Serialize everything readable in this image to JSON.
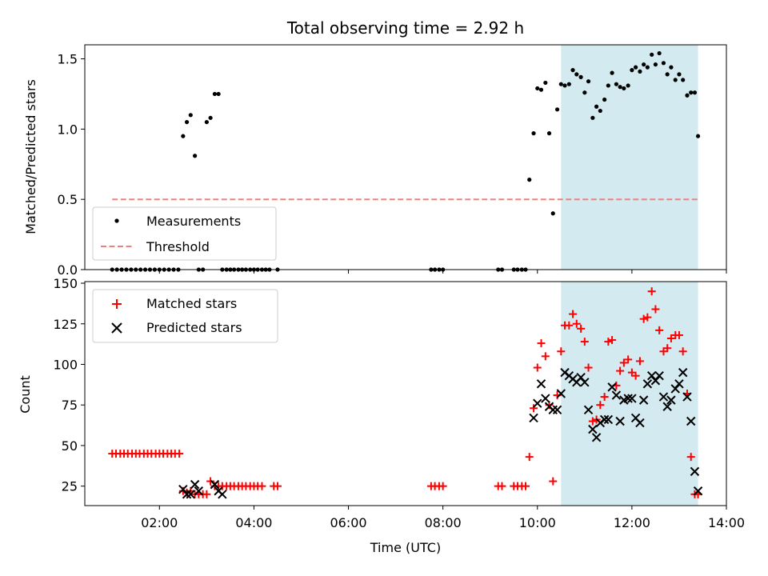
{
  "chart_data": [
    {
      "type": "scatter",
      "title": "Total observing time = 2.92 h",
      "ylabel": "Matched/Predicted stars",
      "xlabel": "",
      "xlim": [
        0.42,
        14.0
      ],
      "ylim": [
        0,
        1.6
      ],
      "yticks": [
        0.0,
        0.5,
        1.0,
        1.5
      ],
      "ytick_labels": [
        "0.0",
        "0.5",
        "1.0",
        "1.5"
      ],
      "observing_window": [
        10.5,
        13.4
      ],
      "window_color": "#d3eaf1",
      "threshold": {
        "name": "Threshold",
        "value": 0.5,
        "x_range": [
          1.0,
          13.4
        ],
        "color": "#f08080"
      },
      "legend": {
        "position": "lower-left",
        "entries": [
          "Measurements",
          "Threshold"
        ]
      },
      "series": [
        {
          "name": "Measurements",
          "color": "#000000",
          "marker": "dot",
          "x": [
            1.0,
            1.1,
            1.2,
            1.3,
            1.4,
            1.5,
            1.6,
            1.7,
            1.8,
            1.9,
            2.0,
            2.1,
            2.2,
            2.3,
            2.4,
            2.5,
            2.58,
            2.66,
            2.75,
            2.83,
            2.92,
            3.0,
            3.08,
            3.17,
            3.25,
            3.33,
            3.42,
            3.5,
            3.58,
            3.67,
            3.75,
            3.83,
            3.92,
            4.0,
            4.08,
            4.17,
            4.25,
            4.33,
            4.5,
            7.75,
            7.83,
            7.92,
            8.0,
            9.17,
            9.25,
            9.5,
            9.58,
            9.67,
            9.75,
            9.83,
            9.92,
            10.0,
            10.08,
            10.17,
            10.25,
            10.33,
            10.42,
            10.5,
            10.58,
            10.67,
            10.75,
            10.83,
            10.92,
            11.0,
            11.08,
            11.17,
            11.25,
            11.33,
            11.42,
            11.5,
            11.58,
            11.67,
            11.75,
            11.83,
            11.92,
            12.0,
            12.08,
            12.17,
            12.25,
            12.33,
            12.42,
            12.5,
            12.58,
            12.67,
            12.75,
            12.83,
            12.92,
            13.0,
            13.08,
            13.17,
            13.25,
            13.33,
            13.4
          ],
          "y": [
            0,
            0,
            0,
            0,
            0,
            0,
            0,
            0,
            0,
            0,
            0,
            0,
            0,
            0,
            0,
            0.95,
            1.05,
            1.1,
            0.81,
            0,
            0,
            1.05,
            1.08,
            1.25,
            1.25,
            0,
            0,
            0,
            0,
            0,
            0,
            0,
            0,
            0,
            0,
            0,
            0,
            0,
            0,
            0,
            0,
            0,
            0,
            0,
            0,
            0,
            0,
            0,
            0,
            0.64,
            0.97,
            1.29,
            1.28,
            1.33,
            0.97,
            0.4,
            1.14,
            1.32,
            1.31,
            1.32,
            1.42,
            1.39,
            1.37,
            1.26,
            1.34,
            1.08,
            1.16,
            1.13,
            1.21,
            1.31,
            1.4,
            1.32,
            1.3,
            1.29,
            1.31,
            1.42,
            1.44,
            1.41,
            1.46,
            1.44,
            1.53,
            1.46,
            1.54,
            1.47,
            1.39,
            1.44,
            1.35,
            1.39,
            1.35,
            1.24,
            1.26,
            1.26,
            0.95
          ]
        }
      ]
    },
    {
      "type": "scatter",
      "title": "",
      "xlabel": "Time (UTC)",
      "ylabel": "Count",
      "xlim": [
        0.42,
        14.0
      ],
      "ylim": [
        13,
        151
      ],
      "xticks": [
        2,
        4,
        6,
        8,
        10,
        12,
        14
      ],
      "xtick_labels": [
        "02:00",
        "04:00",
        "06:00",
        "08:00",
        "10:00",
        "12:00",
        "14:00"
      ],
      "yticks": [
        25,
        50,
        75,
        100,
        125,
        150
      ],
      "ytick_labels": [
        "25",
        "50",
        "75",
        "100",
        "125",
        "150"
      ],
      "observing_window": [
        10.5,
        13.4
      ],
      "window_color": "#d3eaf1",
      "legend": {
        "position": "upper-left",
        "entries": [
          "Matched stars",
          "Predicted stars"
        ]
      },
      "series": [
        {
          "name": "Matched stars",
          "color": "#ff0000",
          "marker": "plus",
          "x": [
            1.0,
            1.08,
            1.17,
            1.25,
            1.33,
            1.42,
            1.5,
            1.58,
            1.67,
            1.75,
            1.83,
            1.92,
            2.0,
            2.08,
            2.17,
            2.25,
            2.33,
            2.42,
            2.5,
            2.58,
            2.66,
            2.75,
            2.83,
            2.92,
            3.0,
            3.08,
            3.17,
            3.25,
            3.33,
            3.42,
            3.5,
            3.58,
            3.67,
            3.75,
            3.83,
            3.92,
            4.0,
            4.08,
            4.17,
            4.42,
            4.5,
            7.75,
            7.83,
            7.92,
            8.0,
            9.17,
            9.25,
            9.5,
            9.58,
            9.67,
            9.75,
            9.83,
            9.92,
            10.0,
            10.08,
            10.17,
            10.25,
            10.33,
            10.42,
            10.5,
            10.58,
            10.67,
            10.75,
            10.83,
            10.92,
            11.0,
            11.08,
            11.17,
            11.25,
            11.33,
            11.42,
            11.5,
            11.58,
            11.67,
            11.75,
            11.83,
            11.92,
            12.0,
            12.08,
            12.17,
            12.25,
            12.33,
            12.42,
            12.5,
            12.58,
            12.67,
            12.75,
            12.83,
            12.92,
            13.0,
            13.08,
            13.17,
            13.25,
            13.33,
            13.4
          ],
          "y": [
            45,
            45,
            45,
            45,
            45,
            45,
            45,
            45,
            45,
            45,
            45,
            45,
            45,
            45,
            45,
            45,
            45,
            45,
            22,
            21,
            22,
            20,
            20,
            20,
            20,
            28,
            25,
            25,
            25,
            25,
            25,
            25,
            25,
            25,
            25,
            25,
            25,
            25,
            25,
            25,
            25,
            25,
            25,
            25,
            25,
            25,
            25,
            25,
            25,
            25,
            25,
            43,
            73,
            98,
            113,
            105,
            75,
            28,
            81,
            108,
            124,
            124,
            131,
            125,
            122,
            114,
            98,
            65,
            66,
            75,
            80,
            114,
            115,
            87,
            96,
            101,
            103,
            95,
            93,
            102,
            128,
            129,
            145,
            134,
            121,
            108,
            110,
            116,
            118,
            118,
            108,
            82,
            43,
            20,
            20
          ]
        },
        {
          "name": "Predicted stars",
          "color": "#000000",
          "marker": "x",
          "x": [
            2.5,
            2.58,
            2.66,
            2.75,
            2.83,
            3.17,
            3.25,
            3.33,
            9.92,
            10.0,
            10.08,
            10.17,
            10.25,
            10.33,
            10.42,
            10.5,
            10.58,
            10.67,
            10.75,
            10.83,
            10.92,
            11.0,
            11.08,
            11.17,
            11.25,
            11.33,
            11.42,
            11.5,
            11.58,
            11.67,
            11.75,
            11.83,
            11.92,
            12.0,
            12.08,
            12.17,
            12.25,
            12.33,
            12.42,
            12.5,
            12.58,
            12.67,
            12.75,
            12.83,
            12.92,
            13.0,
            13.08,
            13.17,
            13.25,
            13.33,
            13.4
          ],
          "y": [
            23,
            20,
            20,
            26,
            22,
            26,
            22,
            20,
            67,
            76,
            88,
            79,
            74,
            72,
            72,
            82,
            95,
            93,
            91,
            89,
            92,
            89,
            72,
            60,
            55,
            64,
            66,
            66,
            86,
            81,
            65,
            78,
            79,
            79,
            67,
            64,
            78,
            88,
            93,
            90,
            93,
            80,
            74,
            78,
            85,
            88,
            95,
            80,
            65,
            34,
            22
          ]
        }
      ]
    }
  ]
}
